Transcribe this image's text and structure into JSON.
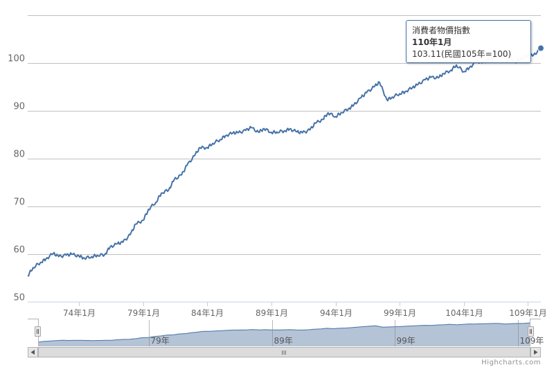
{
  "tooltip": {
    "series_name": "消費者物價指數",
    "date": "110年1月",
    "value_text": "103.11(民國105年=100)"
  },
  "credits": "Highcharts.com",
  "navigator": {
    "labels": [
      "79年",
      "89年",
      "99年",
      "109年"
    ],
    "scrollbar_grip": "III"
  },
  "chart_data": {
    "type": "line",
    "series": [
      {
        "name": "消費者物價指數",
        "x": [
          "70年1月",
          "70年6月",
          "71年1月",
          "71年6月",
          "72年1月",
          "72年6月",
          "73年1月",
          "73年6月",
          "74年1月",
          "74年6月",
          "75年1月",
          "75年6月",
          "76年1月",
          "76年6月",
          "77年1月",
          "77年6月",
          "78年1月",
          "78年6月",
          "79年1月",
          "79年6月",
          "80年1月",
          "80年6月",
          "81年1月",
          "81年6月",
          "82年1月",
          "82年6月",
          "83年1月",
          "83年6月",
          "84年1月",
          "84年6月",
          "85年1月",
          "85年6月",
          "86年1月",
          "86年6月",
          "87年1月",
          "87年6月",
          "88年1月",
          "88年6月",
          "89年1月",
          "89年6月",
          "90年1月",
          "90年6月",
          "91年1月",
          "91年6月",
          "92年1月",
          "92年6月",
          "93年1月",
          "93年6月",
          "94年1月",
          "94年6月",
          "95年1月",
          "95年6月",
          "96年1月",
          "96年6月",
          "97年1月",
          "97年6月",
          "98年1月",
          "98年6月",
          "99年1月",
          "99年6月",
          "100年1月",
          "100年6月",
          "101年1月",
          "101年6月",
          "102年1月",
          "102年6月",
          "103年1月",
          "103年6月",
          "104年1月",
          "104年6月",
          "105年1月",
          "105年6月",
          "106年1月",
          "106年6月",
          "107年1月",
          "107年6月",
          "108年1月",
          "108年6月",
          "109年1月",
          "109年6月",
          "110年1月"
        ],
        "values": [
          55.5,
          57.2,
          58.3,
          59.0,
          60.2,
          59.5,
          59.8,
          60.0,
          59.6,
          59.2,
          59.5,
          59.8,
          59.9,
          61.5,
          62.2,
          62.5,
          64.1,
          66.3,
          67.1,
          69.4,
          70.9,
          72.8,
          73.5,
          75.6,
          76.6,
          78.6,
          80.6,
          82.3,
          82.3,
          83.2,
          84.0,
          84.8,
          85.4,
          85.4,
          85.9,
          86.5,
          85.5,
          86.3,
          85.5,
          85.6,
          85.8,
          86.2,
          85.6,
          85.4,
          86.0,
          87.4,
          88.2,
          89.6,
          88.8,
          89.6,
          90.4,
          91.2,
          92.8,
          93.8,
          95.0,
          96.0,
          92.3,
          92.9,
          93.6,
          94.0,
          94.9,
          95.5,
          96.5,
          97.0,
          96.9,
          97.8,
          98.5,
          99.6,
          98.2,
          99.0,
          100.4,
          100.0,
          100.8,
          101.1,
          101.6,
          101.7,
          100.2,
          101.0,
          101.6,
          101.6,
          103.11
        ]
      }
    ],
    "xtick_labels": [
      "74年1月",
      "79年1月",
      "84年1月",
      "89年1月",
      "94年1月",
      "99年1月",
      "104年1月",
      "109年1月"
    ],
    "yticks": [
      50,
      60,
      70,
      80,
      90,
      100
    ],
    "ylim": [
      50,
      110
    ],
    "grid": true,
    "title": "",
    "xlabel": "",
    "ylabel": "",
    "colors": {
      "line": "#4572a7",
      "navigator_fill": "#b5c3d6",
      "navigator_line": "#4572a7"
    }
  }
}
